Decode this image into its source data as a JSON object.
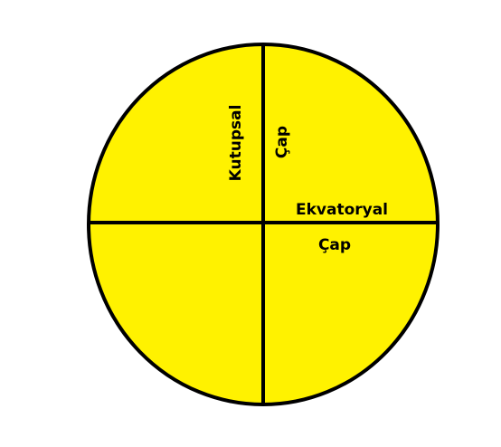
{
  "labels": {
    "polar_word1": "Kutupsal",
    "polar_word2": "Çap",
    "equatorial_word1": "Ekvatoryal",
    "equatorial_word2": "Çap"
  },
  "colors": {
    "fill": "#FFF200",
    "stroke": "#000000",
    "text": "#000000"
  }
}
